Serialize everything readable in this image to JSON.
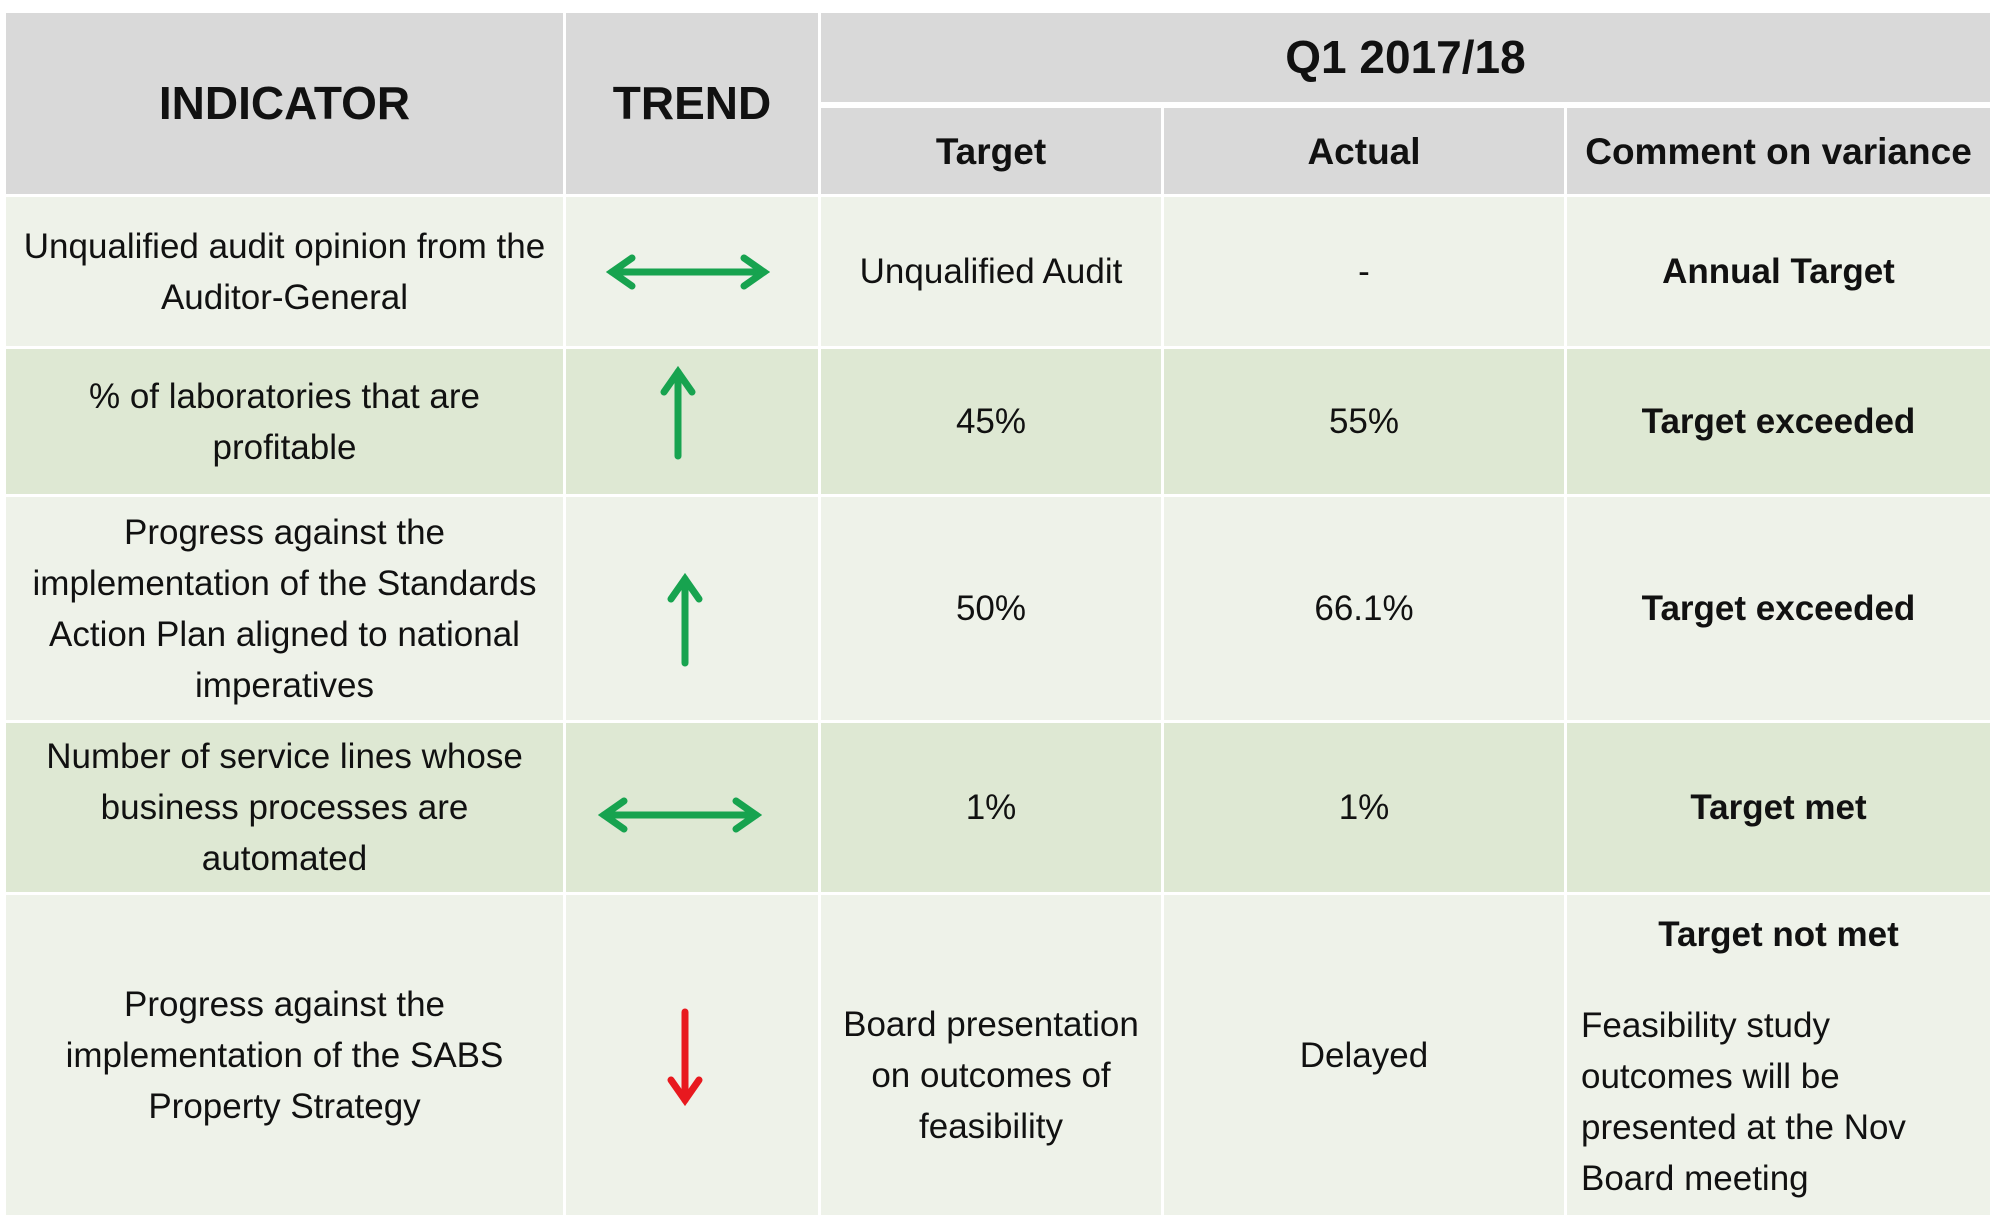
{
  "table": {
    "header": {
      "indicator": "INDICATOR",
      "trend": "TREND",
      "period": "Q1 2017/18",
      "target": "Target",
      "actual": "Actual",
      "comment": "Comment on variance"
    },
    "rows": [
      {
        "indicator": "Unqualified audit opinion from the Auditor-General",
        "target": "Unqualified Audit",
        "actual": "-",
        "comment": "Annual Target"
      },
      {
        "indicator": "% of laboratories that are profitable",
        "target": "45%",
        "actual": "55%",
        "comment": "Target exceeded"
      },
      {
        "indicator": "Progress against the implementation of the Standards Action Plan aligned to national imperatives",
        "target": "50%",
        "actual": "66.1%",
        "comment": "Target exceeded"
      },
      {
        "indicator": "Number of service lines whose business processes are automated",
        "target": "1%",
        "actual": "1%",
        "comment": "Target met"
      },
      {
        "indicator": "Progress against the implementation of the SABS Property Strategy",
        "target": "Board presentation on outcomes of feasibility",
        "actual": "Delayed",
        "comment": "Target not met",
        "note": "Feasibility study outcomes will be presented at the Nov Board meeting"
      }
    ]
  }
}
